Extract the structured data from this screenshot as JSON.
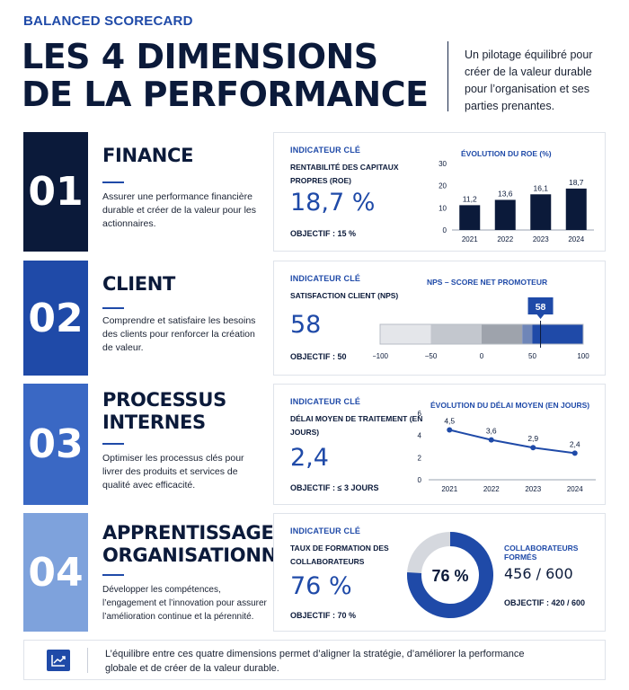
{
  "header": {
    "eyebrow": "BALANCED SCORECARD",
    "title_line1": "LES 4 DIMENSIONS",
    "title_line2": "DE LA PERFORMANCE",
    "tagline": "Un pilotage équilibré pour créer de la valeur durable pour l’organisation et ses parties prenantes."
  },
  "colors": {
    "navy": "#0b1a3a",
    "blue": "#1f4aa8",
    "mid_blue": "#3a68c4",
    "light_blue": "#7ea2dc"
  },
  "dimensions": [
    {
      "number": "01",
      "name_lines": [
        "FINANCE"
      ],
      "description": "Assurer une performance financière durable et créer de la valeur pour les actionnaires.",
      "indicator_kicker": "INDICATEUR CLÉ",
      "indicator_name": "RENTABILITÉ DES CAPITAUX PROPRES (ROE)",
      "indicator_value": "18,7 %",
      "objective": "OBJECTIF : 15 %",
      "chart_title": "ÉVOLUTION DU ROE (%)"
    },
    {
      "number": "02",
      "name_lines": [
        "CLIENT"
      ],
      "description": "Comprendre et satisfaire les besoins des clients pour renforcer la création de valeur.",
      "indicator_kicker": "INDICATEUR CLÉ",
      "indicator_name": "SATISFACTION CLIENT (NPS)",
      "indicator_value": "58",
      "objective": "OBJECTIF : 50",
      "chart_title": "NPS – SCORE NET PROMOTEUR"
    },
    {
      "number": "03",
      "name_lines": [
        "PROCESSUS",
        "INTERNES"
      ],
      "description": "Optimiser les processus clés pour livrer des produits et services de qualité avec efficacité.",
      "indicator_kicker": "INDICATEUR CLÉ",
      "indicator_name": "DÉLAI MOYEN DE TRAITEMENT (EN JOURS)",
      "indicator_value": "2,4",
      "objective": "OBJECTIF : ≤ 3 JOURS",
      "chart_title": "ÉVOLUTION DU DÉLAI MOYEN (EN JOURS)"
    },
    {
      "number": "04",
      "name_lines": [
        "APPRENTISSAGE",
        "ORGANISATIONNEL"
      ],
      "description": "Développer les compétences, l’engagement et l’innovation pour assurer l’amélioration continue et la pérennité.",
      "indicator_kicker": "INDICATEUR CLÉ",
      "indicator_name": "TAUX DE FORMATION DES COLLABORATEURS",
      "indicator_value": "76 %",
      "objective": "OBJECTIF : 70 %",
      "chart_title": "COLLABORATEURS FORMÉS",
      "trained_count": "456 / 600",
      "count_objective": "OBJECTIF : 420 / 600"
    }
  ],
  "chart_data": [
    {
      "type": "bar",
      "title": "ÉVOLUTION DU ROE (%)",
      "categories": [
        "2021",
        "2022",
        "2023",
        "2024"
      ],
      "values": [
        11.2,
        13.6,
        16.1,
        18.7
      ],
      "value_labels": [
        "11,2",
        "13,6",
        "16,1",
        "18,7"
      ],
      "ylim": [
        0,
        30
      ],
      "yticks": [
        "0",
        "10",
        "20",
        "30"
      ]
    },
    {
      "type": "gauge-bar",
      "title": "NPS – SCORE NET PROMOTEUR",
      "range": [
        -100,
        100
      ],
      "ticks": [
        "−100",
        "−50",
        "0",
        "50",
        "100"
      ],
      "value": 58,
      "value_label": "58"
    },
    {
      "type": "line",
      "title": "ÉVOLUTION DU DÉLAI MOYEN (EN JOURS)",
      "categories": [
        "2021",
        "2022",
        "2023",
        "2024"
      ],
      "values": [
        4.5,
        3.6,
        2.9,
        2.4
      ],
      "value_labels": [
        "4,5",
        "3,6",
        "2,9",
        "2,4"
      ],
      "ylim": [
        0,
        6
      ],
      "yticks": [
        "0",
        "2",
        "4",
        "6"
      ]
    },
    {
      "type": "pie",
      "title": "COLLABORATEURS FORMÉS",
      "value_percent": 76,
      "center_label": "76 %"
    }
  ],
  "footer": {
    "icon": "line-chart-icon",
    "text": "L’équilibre entre ces quatre dimensions permet d’aligner la stratégie, d’améliorer la performance globale et de créer de la valeur durable."
  }
}
